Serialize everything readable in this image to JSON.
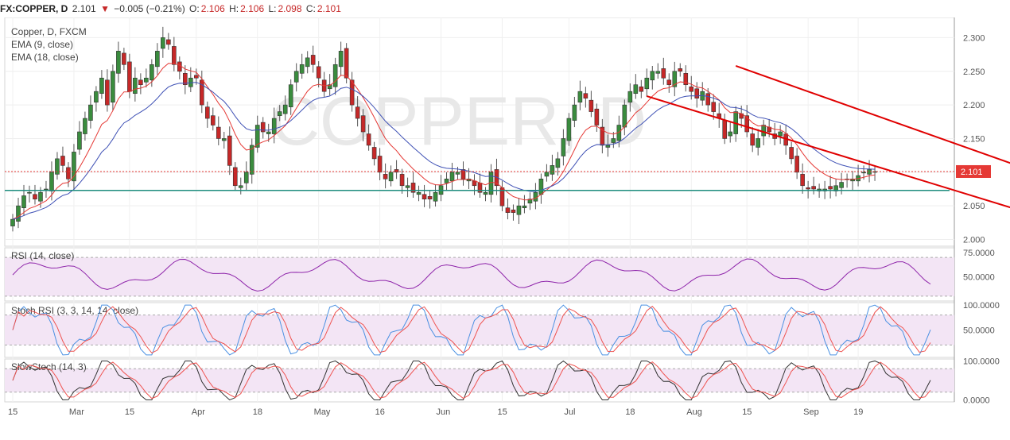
{
  "header": {
    "symbol": "FX:COPPER, D",
    "last": "2.101",
    "change_arrow": "▼",
    "change": "−0.005 (−0.21%)",
    "o_label": "O:",
    "o": "2.106",
    "h_label": "H:",
    "h": "2.106",
    "l_label": "L:",
    "l": "2.098",
    "c_label": "C:",
    "c": "2.101"
  },
  "colors": {
    "up": "#3a8c3e",
    "down": "#c62828",
    "ema9": "#e53935",
    "ema18": "#3f51b5",
    "rsi": "#8e24aa",
    "stoch_k": "#4a90e2",
    "stoch_d": "#ef5350",
    "slow_k": "#333333",
    "slow_d": "#ef5350",
    "support": "#1e8c7e",
    "channel": "#e00000",
    "bg_band": "#f3e5f5"
  },
  "chart_data": [
    {
      "type": "candlestick",
      "title": "Copper, D, FXCM",
      "watermark": "COPPER, D",
      "legend": [
        "Copper, D, FXCM",
        "EMA (9, close)",
        "EMA (18, close)"
      ],
      "ylim": [
        1.99,
        2.33
      ],
      "y_ticks": [
        "2.300",
        "2.250",
        "2.200",
        "2.150",
        "2.100",
        "2.050",
        "2.000"
      ],
      "x_ticks": [
        "15",
        "Mar",
        "15",
        "Apr",
        "18",
        "May",
        "16",
        "Jun",
        "15",
        "Jul",
        "18",
        "Aug",
        "15",
        "Sep",
        "19"
      ],
      "last_price_label": "2.101",
      "support_level": 2.073,
      "channel_upper": [
        [
          130,
          2.258
        ],
        [
          197,
          2.062
        ]
      ],
      "channel_lower": [
        [
          114,
          2.213
        ],
        [
          197,
          2.003
        ]
      ],
      "closes": [
        2.03,
        2.05,
        2.065,
        2.07,
        2.06,
        2.07,
        2.075,
        2.1,
        2.12,
        2.11,
        2.09,
        2.13,
        2.16,
        2.18,
        2.2,
        2.22,
        2.24,
        2.2,
        2.25,
        2.28,
        2.26,
        2.22,
        2.24,
        2.23,
        2.24,
        2.26,
        2.28,
        2.3,
        2.29,
        2.26,
        2.25,
        2.23,
        2.24,
        2.24,
        2.2,
        2.18,
        2.17,
        2.15,
        2.15,
        2.11,
        2.08,
        2.08,
        2.1,
        2.14,
        2.17,
        2.16,
        2.16,
        2.18,
        2.19,
        2.2,
        2.23,
        2.25,
        2.26,
        2.27,
        2.26,
        2.24,
        2.22,
        2.23,
        2.26,
        2.28,
        2.24,
        2.2,
        2.18,
        2.16,
        2.14,
        2.12,
        2.1,
        2.09,
        2.1,
        2.1,
        2.08,
        2.08,
        2.07,
        2.07,
        2.06,
        2.06,
        2.07,
        2.08,
        2.09,
        2.1,
        2.1,
        2.09,
        2.09,
        2.08,
        2.07,
        2.07,
        2.1,
        2.08,
        2.05,
        2.04,
        2.04,
        2.05,
        2.05,
        2.06,
        2.07,
        2.09,
        2.1,
        2.11,
        2.12,
        2.15,
        2.18,
        2.2,
        2.22,
        2.21,
        2.19,
        2.17,
        2.14,
        2.14,
        2.15,
        2.17,
        2.2,
        2.22,
        2.23,
        2.22,
        2.24,
        2.25,
        2.25,
        2.24,
        2.23,
        2.25,
        2.25,
        2.23,
        2.22,
        2.21,
        2.22,
        2.2,
        2.19,
        2.18,
        2.15,
        2.16,
        2.19,
        2.18,
        2.16,
        2.14,
        2.15,
        2.17,
        2.16,
        2.15,
        2.16,
        2.14,
        2.12,
        2.1,
        2.08,
        2.075,
        2.075,
        2.075,
        2.075,
        2.075,
        2.08,
        2.085,
        2.09,
        2.09,
        2.095,
        2.1,
        2.104,
        2.101
      ],
      "x_count": 166,
      "x_tick_index": [
        0,
        11,
        21,
        33,
        44,
        55,
        66,
        77,
        88,
        100,
        111,
        122,
        132,
        143,
        152
      ]
    },
    {
      "type": "line",
      "title": "RSI (14, close)",
      "ylim": [
        25,
        80
      ],
      "y_ticks": [
        "75.0000",
        "50.0000"
      ],
      "band": [
        30,
        70
      ]
    },
    {
      "type": "line",
      "title": "Stoch RSI (3, 3, 14, 14, close)",
      "ylim": [
        -5,
        105
      ],
      "y_ticks": [
        "100.0000",
        "50.0000"
      ],
      "band": [
        20,
        80
      ]
    },
    {
      "type": "line",
      "title": "SlowStoch (14, 3)",
      "ylim": [
        -5,
        105
      ],
      "y_ticks": [
        "100.0000",
        "0.0000"
      ],
      "band": [
        20,
        80
      ]
    }
  ]
}
